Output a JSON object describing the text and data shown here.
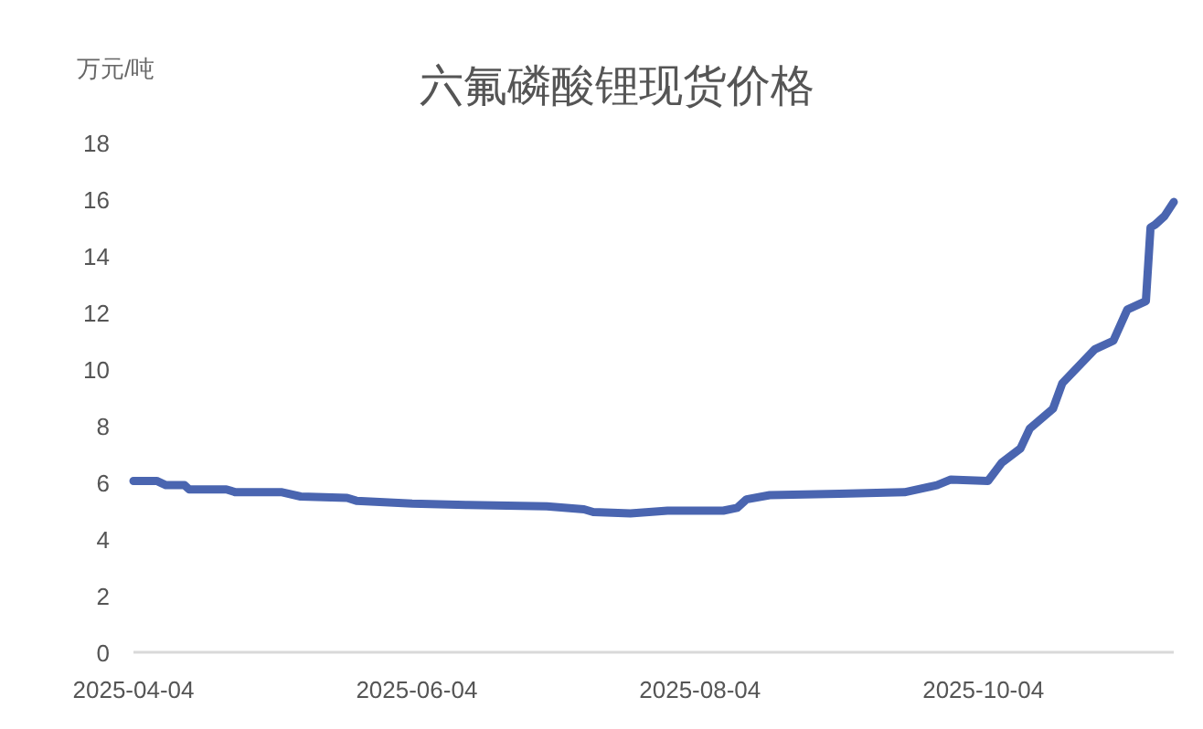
{
  "chart_data": {
    "type": "line",
    "title": "六氟磷酸锂现货价格",
    "ylabel": "万元/吨",
    "x": [
      "2025-04-04",
      "2025-04-09",
      "2025-04-11",
      "2025-04-15",
      "2025-04-16",
      "2025-04-24",
      "2025-04-26",
      "2025-05-06",
      "2025-05-10",
      "2025-05-20",
      "2025-05-22",
      "2025-06-03",
      "2025-06-15",
      "2025-07-02",
      "2025-07-10",
      "2025-07-12",
      "2025-07-20",
      "2025-07-28",
      "2025-08-09",
      "2025-08-12",
      "2025-08-14",
      "2025-08-19",
      "2025-09-03",
      "2025-09-17",
      "2025-09-24",
      "2025-09-27",
      "2025-10-05",
      "2025-10-08",
      "2025-10-12",
      "2025-10-14",
      "2025-10-19",
      "2025-10-21",
      "2025-10-28",
      "2025-11-01",
      "2025-11-04",
      "2025-11-08",
      "2025-11-09",
      "2025-11-10",
      "2025-11-12",
      "2025-11-14"
    ],
    "series": [
      {
        "color": "#4a65b0",
        "values": [
          6.05,
          6.05,
          5.9,
          5.9,
          5.75,
          5.75,
          5.65,
          5.65,
          5.5,
          5.45,
          5.35,
          5.25,
          5.2,
          5.15,
          5.05,
          4.95,
          4.9,
          5.0,
          5.0,
          5.1,
          5.4,
          5.55,
          5.6,
          5.65,
          5.9,
          6.1,
          6.05,
          6.7,
          7.2,
          7.9,
          8.6,
          9.5,
          10.7,
          11.0,
          12.1,
          12.4,
          15.0,
          15.1,
          15.4,
          15.9
        ]
      }
    ],
    "xlim": [
      "2025-04-04",
      "2025-11-14"
    ],
    "xticks": [
      {
        "value": "2025-04-04",
        "label": "2025-04-04"
      },
      {
        "value": "2025-06-04",
        "label": "2025-06-04"
      },
      {
        "value": "2025-08-04",
        "label": "2025-08-04"
      },
      {
        "value": "2025-10-04",
        "label": "2025-10-04"
      }
    ],
    "ylim": [
      0,
      18
    ],
    "yticks": [
      0,
      2,
      4,
      6,
      8,
      10,
      12,
      14,
      16,
      18
    ],
    "grid": false,
    "marker": "none",
    "line_style": "solid"
  }
}
